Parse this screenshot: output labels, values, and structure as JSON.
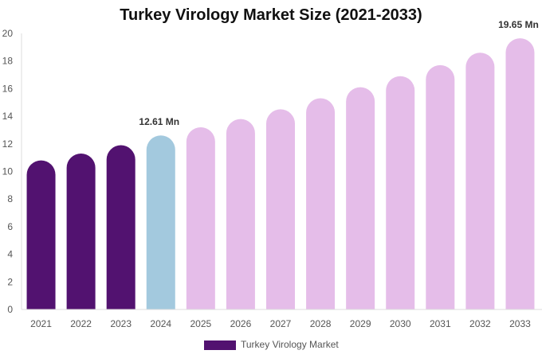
{
  "chart_data": {
    "type": "bar",
    "title": "Turkey Virology Market Size (2021-2033)",
    "xlabel": "",
    "ylabel": "",
    "categories": [
      "2021",
      "2022",
      "2023",
      "2024",
      "2025",
      "2026",
      "2027",
      "2028",
      "2029",
      "2030",
      "2031",
      "2032",
      "2033"
    ],
    "series": [
      {
        "name": "Turkey Virology Market",
        "values": [
          10.8,
          11.3,
          11.9,
          12.61,
          13.2,
          13.8,
          14.5,
          15.3,
          16.1,
          16.9,
          17.7,
          18.6,
          19.65
        ]
      }
    ],
    "ylim": [
      0,
      20
    ],
    "yticks": [
      0,
      2,
      4,
      6,
      8,
      10,
      12,
      14,
      16,
      18,
      20
    ],
    "data_labels": [
      {
        "category": "2024",
        "text": "12.61 Mn"
      },
      {
        "category": "2033",
        "text": "19.65 Mn"
      }
    ],
    "bar_colors": {
      "historical": "#521270",
      "current": "#a3c9de",
      "forecast": "#e5bde9"
    },
    "bar_color_by_category": [
      "historical",
      "historical",
      "historical",
      "current",
      "forecast",
      "forecast",
      "forecast",
      "forecast",
      "forecast",
      "forecast",
      "forecast",
      "forecast",
      "forecast"
    ],
    "legend": {
      "placement": "bottom-center",
      "color": "#521270",
      "label": "Turkey Virology Market"
    },
    "grid": false
  }
}
